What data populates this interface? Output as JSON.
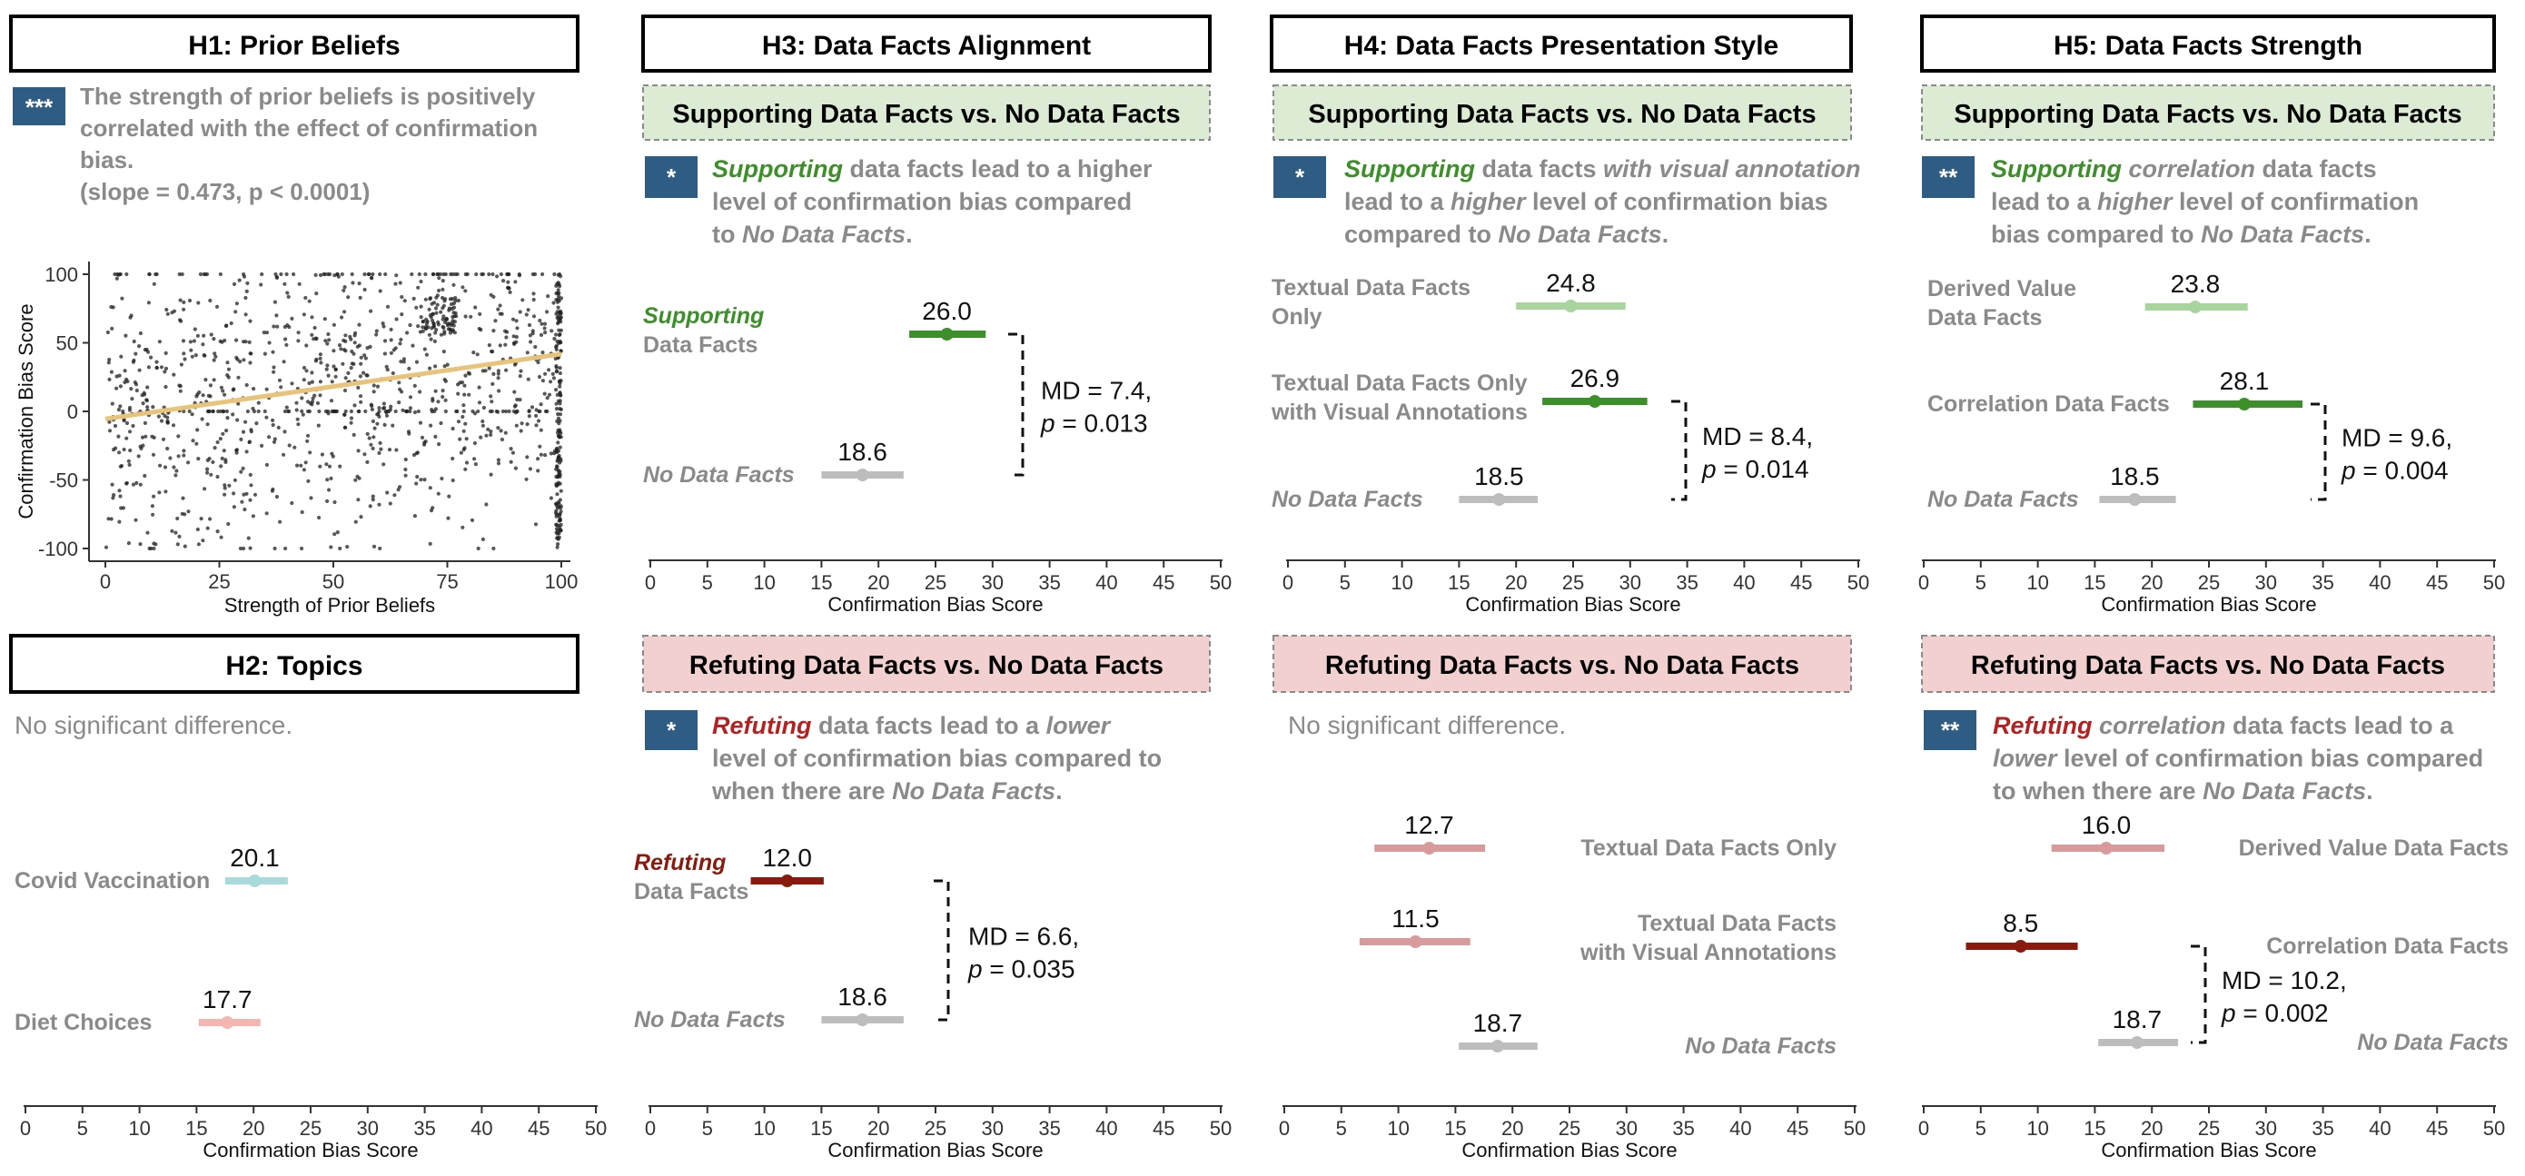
{
  "hyp_titles": {
    "h1": "H1: Prior Beliefs",
    "h2": "H2: Topics",
    "h3": "H3: Data Facts Alignment",
    "h4": "H4: Data Facts Presentation Style",
    "h5": "H5: Data Facts Strength"
  },
  "comparisons": {
    "supporting": "Supporting Data Facts vs. No Data Facts",
    "refuting": "Refuting Data Facts vs. No Data Facts"
  },
  "colors": {
    "badge": "#2E5C82",
    "support_bg": "#DCEBD3",
    "refute_bg": "#F2D0D0",
    "green_dark": "#3D8F29",
    "green_light": "#A8D59E",
    "red_dark": "#8B1A0E",
    "red_light": "#D89A9A",
    "gray": "#BDBDBD",
    "teal": "#A8DADC",
    "salmon": "#F4B6B0",
    "text_gray": "#8A8A8A",
    "trend": "#E8C47A"
  },
  "h1": {
    "badge": "***",
    "finding": [
      "The strength of prior beliefs is positively",
      "correlated with the effect of confirmation",
      "bias.",
      "(slope = 0.473, p < 0.0001)"
    ],
    "chart_data": {
      "type": "scatter",
      "xlabel": "Strength of Prior Beliefs",
      "ylabel": "Confirmation Bias Score",
      "xlim": [
        0,
        100
      ],
      "ylim": [
        -100,
        100
      ],
      "xticks": [
        "0",
        "25",
        "50",
        "75",
        "100"
      ],
      "yticks": [
        "100",
        "50",
        "0",
        "-50",
        "-100"
      ],
      "trend": {
        "slope": 0.473,
        "intercept": -5.5
      }
    }
  },
  "h2": {
    "finding": "No significant difference.",
    "chart_data": {
      "type": "dot_interval",
      "xlabel": "Confirmation Bias Score",
      "xlim": [
        0,
        50
      ],
      "xticks": [
        "0",
        "5",
        "10",
        "15",
        "20",
        "25",
        "30",
        "35",
        "40",
        "45",
        "50"
      ],
      "rows": [
        {
          "label": [
            "Covid Vaccination"
          ],
          "value": 20.1,
          "low": 17.5,
          "high": 23.0,
          "value_label": "20.1"
        },
        {
          "label": [
            "Diet Choices"
          ],
          "value": 17.7,
          "low": 15.2,
          "high": 20.6,
          "value_label": "17.7"
        }
      ]
    }
  },
  "h3s": {
    "badge": "*",
    "finding": "Supporting data facts lead to a higher level of confirmation bias compared to No Data Facts.",
    "chart_data": {
      "type": "dot_interval",
      "xlabel": "Confirmation Bias Score",
      "xlim": [
        0,
        50
      ],
      "xticks": [
        "0",
        "5",
        "10",
        "15",
        "20",
        "25",
        "30",
        "35",
        "40",
        "45",
        "50"
      ],
      "rows": [
        {
          "label": [
            "Supporting",
            "Data Facts"
          ],
          "value": 26.0,
          "low": 22.7,
          "high": 29.4,
          "value_label": "26.0"
        },
        {
          "label": [
            "No Data Facts"
          ],
          "value": 18.6,
          "low": 15.0,
          "high": 22.2,
          "value_label": "18.6"
        }
      ],
      "annotation": {
        "md": "MD = 7.4,",
        "p": "= 0.013"
      }
    }
  },
  "h3r": {
    "badge": "*",
    "finding": "Refuting data facts lead to a lower level of confirmation bias compared to when there are No Data Facts.",
    "chart_data": {
      "type": "dot_interval",
      "xlabel": "Confirmation Bias Score",
      "xlim": [
        0,
        50
      ],
      "xticks": [
        "0",
        "5",
        "10",
        "15",
        "20",
        "25",
        "30",
        "35",
        "40",
        "45",
        "50"
      ],
      "rows": [
        {
          "label": [
            "Refuting",
            "Data Facts"
          ],
          "value": 12.0,
          "low": 8.8,
          "high": 15.2,
          "value_label": "12.0"
        },
        {
          "label": [
            "No Data Facts"
          ],
          "value": 18.6,
          "low": 15.0,
          "high": 22.2,
          "value_label": "18.6"
        }
      ],
      "annotation": {
        "md": "MD = 6.6,",
        "p": "= 0.035"
      }
    }
  },
  "h4s": {
    "badge": "*",
    "finding": "Supporting data facts with visual annotation lead to a higher level of confirmation bias compared to No Data Facts.",
    "chart_data": {
      "type": "dot_interval",
      "xlabel": "Confirmation Bias Score",
      "xlim": [
        0,
        50
      ],
      "xticks": [
        "0",
        "5",
        "10",
        "15",
        "20",
        "25",
        "30",
        "35",
        "40",
        "45",
        "50"
      ],
      "rows": [
        {
          "label": [
            "Textual Data Facts",
            "Only"
          ],
          "value": 24.8,
          "low": 20.0,
          "high": 29.6,
          "value_label": "24.8"
        },
        {
          "label": [
            "Textual Data Facts Only",
            "with Visual Annotations"
          ],
          "value": 26.9,
          "low": 22.3,
          "high": 31.5,
          "value_label": "26.9"
        },
        {
          "label": [
            "No Data Facts"
          ],
          "value": 18.5,
          "low": 15.0,
          "high": 21.9,
          "value_label": "18.5"
        }
      ],
      "annotation": {
        "md": "MD = 8.4,",
        "p": "= 0.014"
      }
    }
  },
  "h4r": {
    "finding": "No significant difference.",
    "chart_data": {
      "type": "dot_interval",
      "xlabel": "Confirmation Bias Score",
      "xlim": [
        0,
        50
      ],
      "xticks": [
        "0",
        "5",
        "10",
        "15",
        "20",
        "25",
        "30",
        "35",
        "40",
        "45",
        "50"
      ],
      "rows": [
        {
          "label": [
            "Textual Data Facts Only"
          ],
          "value": 12.7,
          "low": 7.9,
          "high": 17.6,
          "value_label": "12.7"
        },
        {
          "label": [
            "Textual Data Facts",
            "with Visual Annotations"
          ],
          "value": 11.5,
          "low": 6.6,
          "high": 16.3,
          "value_label": "11.5"
        },
        {
          "label": [
            "No Data Facts"
          ],
          "value": 18.7,
          "low": 15.3,
          "high": 22.2,
          "value_label": "18.7"
        }
      ]
    }
  },
  "h5s": {
    "badge": "**",
    "finding": "Supporting correlation data facts lead to a higher level of confirmation bias compared to No Data Facts.",
    "chart_data": {
      "type": "dot_interval",
      "xlabel": "Confirmation Bias Score",
      "xlim": [
        0,
        50
      ],
      "xticks": [
        "0",
        "5",
        "10",
        "15",
        "20",
        "25",
        "30",
        "35",
        "40",
        "45",
        "50"
      ],
      "rows": [
        {
          "label": [
            "Derived Value",
            "Data Facts"
          ],
          "value": 23.8,
          "low": 19.4,
          "high": 28.4,
          "value_label": "23.8"
        },
        {
          "label": [
            "Correlation Data Facts"
          ],
          "value": 28.1,
          "low": 23.6,
          "high": 33.2,
          "value_label": "28.1"
        },
        {
          "label": [
            "No Data Facts"
          ],
          "value": 18.5,
          "low": 15.4,
          "high": 22.1,
          "value_label": "18.5"
        }
      ],
      "annotation": {
        "md": "MD = 9.6,",
        "p": "= 0.004"
      }
    }
  },
  "h5r": {
    "badge": "**",
    "finding": "Refuting correlation data facts lead to a lower level of confirmation bias compared to when there are No Data Facts.",
    "chart_data": {
      "type": "dot_interval",
      "xlabel": "Confirmation Bias Score",
      "xlim": [
        0,
        50
      ],
      "xticks": [
        "0",
        "5",
        "10",
        "15",
        "20",
        "25",
        "30",
        "35",
        "40",
        "45",
        "50"
      ],
      "rows": [
        {
          "label": [
            "Derived Value Data Facts"
          ],
          "value": 16.0,
          "low": 11.2,
          "high": 21.1,
          "value_label": "16.0"
        },
        {
          "label": [
            "Correlation Data Facts"
          ],
          "value": 8.5,
          "low": 3.7,
          "high": 13.5,
          "value_label": "8.5"
        },
        {
          "label": [
            "No Data Facts"
          ],
          "value": 18.7,
          "low": 15.3,
          "high": 22.3,
          "value_label": "18.7"
        }
      ],
      "annotation": {
        "md": "MD = 10.2,",
        "p": "= 0.002"
      }
    }
  }
}
